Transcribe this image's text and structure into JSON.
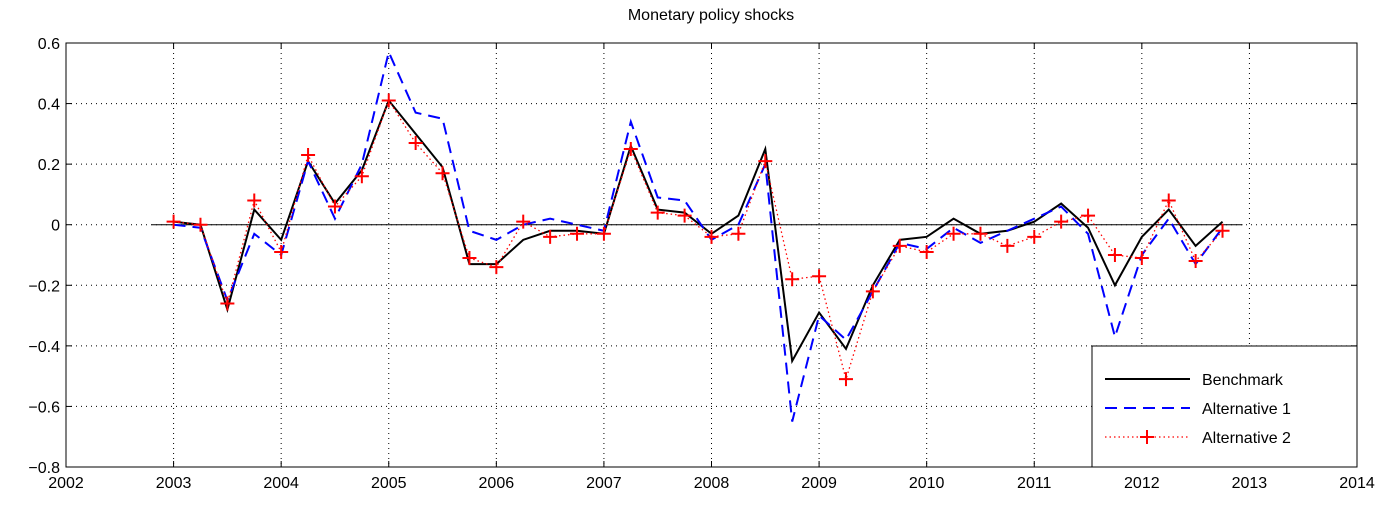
{
  "chart_data": {
    "type": "line",
    "title": "Monetary policy shocks",
    "x": [
      2003,
      2003.25,
      2003.5,
      2003.75,
      2004,
      2004.25,
      2004.5,
      2004.75,
      2005,
      2005.25,
      2005.5,
      2005.75,
      2006,
      2006.25,
      2006.5,
      2006.75,
      2007,
      2007.25,
      2007.5,
      2007.75,
      2008,
      2008.25,
      2008.5,
      2008.75,
      2009,
      2009.25,
      2009.5,
      2009.75,
      2010,
      2010.25,
      2010.5,
      2010.75,
      2011,
      2011.25,
      2011.5,
      2011.75,
      2012,
      2012.25,
      2012.5,
      2012.75
    ],
    "series": [
      {
        "name": "Benchmark",
        "color": "#000000",
        "style": "solid",
        "values": [
          0.01,
          0.0,
          -0.28,
          0.05,
          -0.05,
          0.21,
          0.07,
          0.18,
          0.41,
          0.3,
          0.19,
          -0.13,
          -0.13,
          -0.05,
          -0.02,
          -0.02,
          -0.03,
          0.26,
          0.05,
          0.04,
          -0.03,
          0.03,
          0.25,
          -0.45,
          -0.29,
          -0.41,
          -0.2,
          -0.05,
          -0.04,
          0.02,
          -0.03,
          -0.02,
          0.01,
          0.07,
          -0.01,
          -0.2,
          -0.04,
          0.05,
          -0.07,
          0.01
        ]
      },
      {
        "name": "Alternative 1",
        "color": "#0000ff",
        "style": "dashed",
        "values": [
          0.0,
          -0.01,
          -0.25,
          -0.03,
          -0.1,
          0.21,
          0.02,
          0.2,
          0.57,
          0.37,
          0.35,
          -0.02,
          -0.05,
          0.0,
          0.02,
          0.0,
          -0.02,
          0.34,
          0.09,
          0.08,
          -0.05,
          0.0,
          0.2,
          -0.65,
          -0.3,
          -0.38,
          -0.22,
          -0.06,
          -0.08,
          -0.01,
          -0.06,
          -0.02,
          0.02,
          0.06,
          -0.03,
          -0.37,
          -0.1,
          0.02,
          -0.13,
          -0.01
        ]
      },
      {
        "name": "Alternative 2",
        "color": "#ff0000",
        "style": "dotted",
        "marker": "plus",
        "values": [
          0.01,
          0.0,
          -0.26,
          0.08,
          -0.09,
          0.23,
          0.06,
          0.16,
          0.41,
          0.27,
          0.17,
          -0.11,
          -0.14,
          0.01,
          -0.04,
          -0.03,
          -0.03,
          0.25,
          0.04,
          0.03,
          -0.04,
          -0.03,
          0.21,
          -0.18,
          -0.17,
          -0.51,
          -0.22,
          -0.07,
          -0.09,
          -0.03,
          -0.03,
          -0.07,
          -0.04,
          0.01,
          0.03,
          -0.1,
          -0.11,
          0.08,
          -0.12,
          -0.02
        ]
      }
    ],
    "xlim": [
      2002,
      2014
    ],
    "xticks": [
      2002,
      2003,
      2004,
      2005,
      2006,
      2007,
      2008,
      2009,
      2010,
      2011,
      2012,
      2013,
      2014
    ],
    "ylim": [
      -0.8,
      0.6
    ],
    "yticks": [
      {
        "value": -0.8,
        "label": "−0.8"
      },
      {
        "value": -0.6,
        "label": "−0.6"
      },
      {
        "value": -0.4,
        "label": "−0.4"
      },
      {
        "value": -0.2,
        "label": "−0.2"
      },
      0,
      0.2,
      0.4,
      0.6
    ],
    "grid": true,
    "legend": "lower right"
  }
}
